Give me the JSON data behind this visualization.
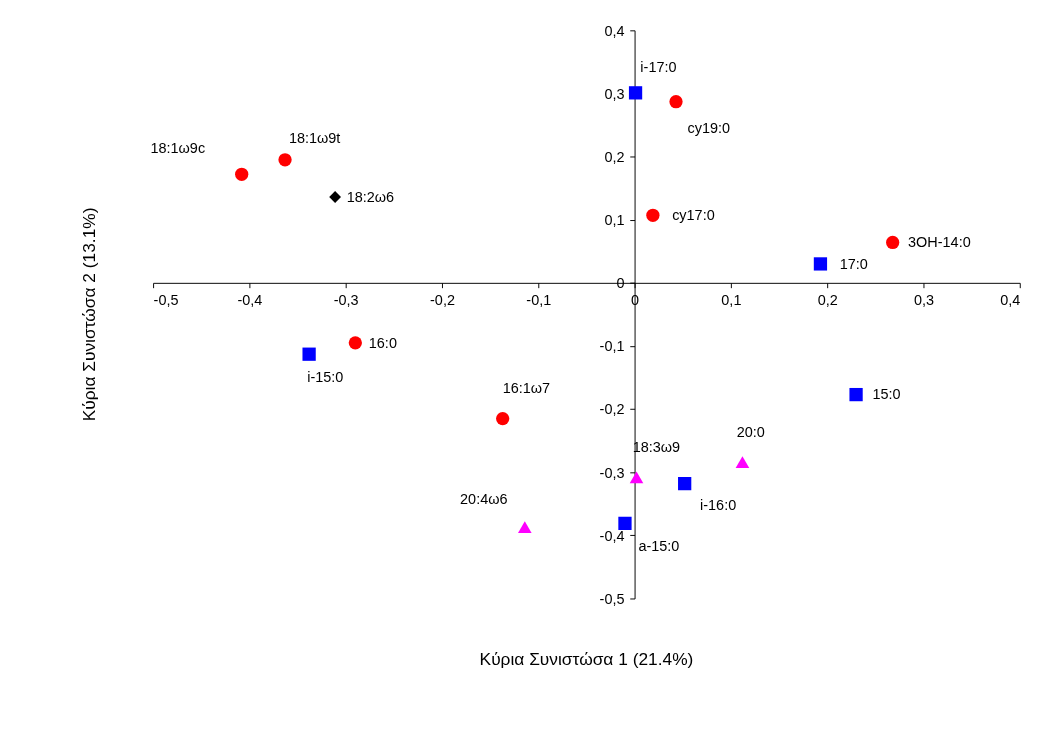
{
  "chart_data": {
    "type": "scatter",
    "xlabel": "Κύρια Συνιστώσα 1 (21.4%)",
    "ylabel": "Κύρια Συνιστώσα 2 (13.1%)",
    "series": [
      {
        "color": "#ff0000",
        "marker": "circle",
        "x": [
          -0.408,
          -0.363,
          0.043,
          0.019,
          0.268,
          -0.29,
          -0.137
        ],
        "values": [
          0.172,
          0.195,
          0.287,
          0.107,
          0.064,
          -0.095,
          -0.215
        ]
      },
      {
        "color": "#0000ff",
        "marker": "square",
        "x": [
          0.001,
          0.193,
          -0.338,
          0.23,
          0.052,
          -0.01
        ],
        "values": [
          0.301,
          0.03,
          -0.113,
          -0.177,
          -0.318,
          -0.381
        ]
      },
      {
        "color": "#ff00ff",
        "marker": "triangle",
        "x": [
          0.002,
          0.112,
          -0.114
        ],
        "values": [
          -0.308,
          -0.284,
          -0.387
        ]
      },
      {
        "color": "#000000",
        "marker": "diamond",
        "x": [
          -0.311
        ],
        "values": [
          0.136
        ]
      }
    ],
    "annotations": [
      {
        "text": "18:1ω9c",
        "x": -0.408,
        "y": 0.172
      },
      {
        "text": "18:1ω9t",
        "x": -0.363,
        "y": 0.195
      },
      {
        "text": "18:2ω6",
        "x": -0.311,
        "y": 0.136
      },
      {
        "text": "cy19:0",
        "x": 0.043,
        "y": 0.287
      },
      {
        "text": "cy17:0",
        "x": 0.019,
        "y": 0.107
      },
      {
        "text": "3OH-14:0",
        "x": 0.268,
        "y": 0.064
      },
      {
        "text": "16:0",
        "x": -0.29,
        "y": -0.095
      },
      {
        "text": "16:1ω7",
        "x": -0.137,
        "y": -0.215
      },
      {
        "text": "i-17:0",
        "x": 0.001,
        "y": 0.301
      },
      {
        "text": "17:0",
        "x": 0.193,
        "y": 0.03
      },
      {
        "text": "i-15:0",
        "x": -0.338,
        "y": -0.113
      },
      {
        "text": "15:0",
        "x": 0.23,
        "y": -0.177
      },
      {
        "text": "i-16:0",
        "x": 0.052,
        "y": -0.318
      },
      {
        "text": "a-15:0",
        "x": -0.01,
        "y": -0.381
      },
      {
        "text": "18:3ω9",
        "x": 0.002,
        "y": -0.308
      },
      {
        "text": "20:0",
        "x": 0.112,
        "y": -0.284
      },
      {
        "text": "20:4ω6",
        "x": -0.114,
        "y": -0.387
      }
    ],
    "xlim": [
      -0.5,
      0.4
    ],
    "xticks": [
      {
        "value": -0.5,
        "label": "-0,5"
      },
      {
        "value": -0.4,
        "label": "-0,4"
      },
      {
        "value": -0.3,
        "label": "-0,3"
      },
      {
        "value": -0.2,
        "label": "-0,2"
      },
      {
        "value": -0.1,
        "label": "-0,1"
      },
      0,
      {
        "value": 0.1,
        "label": "0,1"
      },
      {
        "value": 0.2,
        "label": "0,2"
      },
      {
        "value": 0.3,
        "label": "0,3"
      },
      {
        "value": 0.4,
        "label": "0,4"
      }
    ],
    "ylim": [
      -0.5,
      0.4
    ],
    "yticks": [
      {
        "value": -0.5,
        "label": "-0,5"
      },
      {
        "value": -0.4,
        "label": "-0,4"
      },
      {
        "value": -0.3,
        "label": "-0,3"
      },
      {
        "value": -0.2,
        "label": "-0,2"
      },
      {
        "value": -0.1,
        "label": "-0,1"
      },
      0,
      {
        "value": 0.1,
        "label": "0,1"
      },
      {
        "value": 0.2,
        "label": "0,2"
      },
      {
        "value": 0.3,
        "label": "0,3"
      },
      {
        "value": 0.4,
        "label": "0,4"
      }
    ],
    "grid": false
  }
}
